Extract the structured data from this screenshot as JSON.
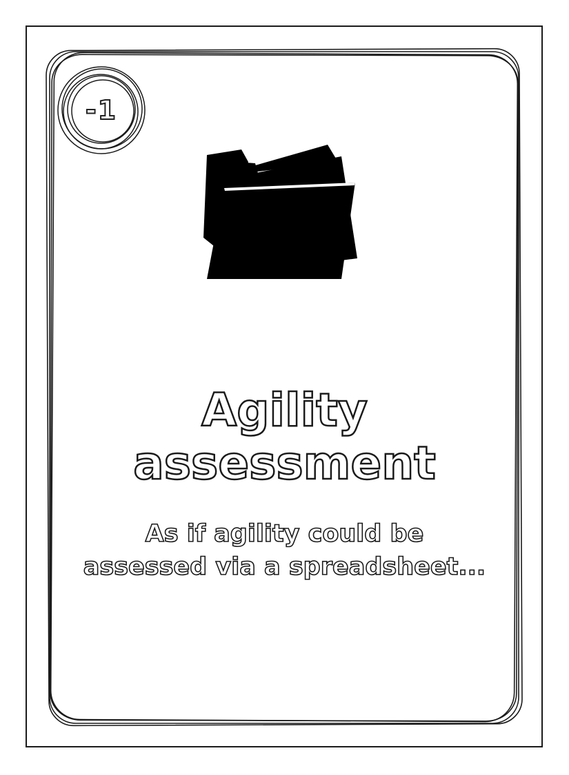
{
  "card": {
    "badge_value": "-1",
    "icon": "folder-icon",
    "title_line1": "Agility",
    "title_line2": "assessment",
    "subtitle_line1": "As if agility could be",
    "subtitle_line2": "assessed via a spreadsheet..."
  },
  "colors": {
    "ink": "#1a1a1a",
    "paper": "#ffffff"
  }
}
